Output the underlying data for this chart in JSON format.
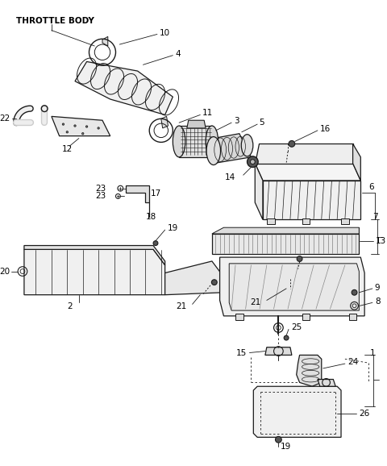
{
  "bg": "#ffffff",
  "lc": "#1a1a1a",
  "gray": "#888888",
  "lgray": "#cccccc",
  "fs": 7.5,
  "fs_title": 7.5
}
